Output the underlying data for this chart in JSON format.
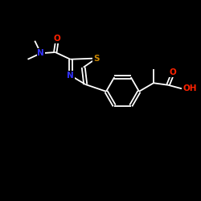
{
  "background_color": "#000000",
  "bond_color": "#ffffff",
  "atom_colors": {
    "N": "#3333ff",
    "O": "#ff2200",
    "S": "#cc8800",
    "C": "#ffffff",
    "H": "#ffffff"
  },
  "scale": 10,
  "lw": 1.3
}
